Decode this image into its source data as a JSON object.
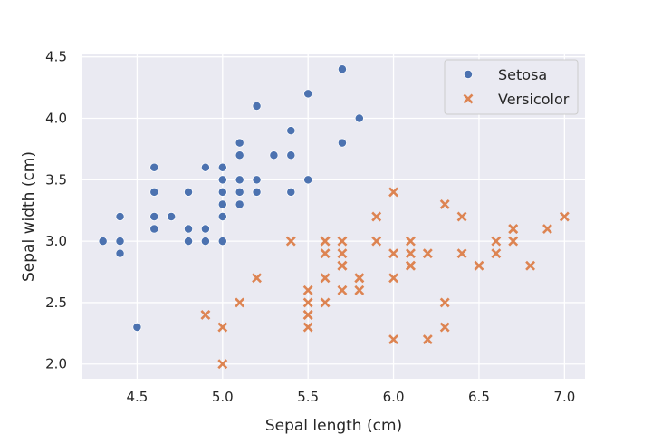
{
  "chart_data": {
    "type": "scatter",
    "title": "",
    "xlabel": "Sepal length (cm)",
    "ylabel": "Sepal width (cm)",
    "xlim": [
      4.18,
      7.12
    ],
    "ylim": [
      1.88,
      4.52
    ],
    "xticks": [
      "4.5",
      "5.0",
      "5.5",
      "6.0",
      "6.5",
      "7.0"
    ],
    "yticks": [
      "2.0",
      "2.5",
      "3.0",
      "3.5",
      "4.0",
      "4.5"
    ],
    "grid": true,
    "legend_position": "top-right",
    "series": [
      {
        "name": "Setosa",
        "marker": "circle",
        "color": "#4c72b0",
        "points": [
          [
            5.1,
            3.5
          ],
          [
            4.9,
            3.0
          ],
          [
            4.7,
            3.2
          ],
          [
            4.6,
            3.1
          ],
          [
            5.0,
            3.6
          ],
          [
            5.4,
            3.9
          ],
          [
            4.6,
            3.4
          ],
          [
            5.0,
            3.4
          ],
          [
            4.4,
            2.9
          ],
          [
            4.9,
            3.1
          ],
          [
            5.4,
            3.7
          ],
          [
            4.8,
            3.4
          ],
          [
            4.8,
            3.0
          ],
          [
            4.3,
            3.0
          ],
          [
            5.8,
            4.0
          ],
          [
            5.7,
            4.4
          ],
          [
            5.4,
            3.9
          ],
          [
            5.1,
            3.5
          ],
          [
            5.7,
            3.8
          ],
          [
            5.1,
            3.8
          ],
          [
            5.4,
            3.4
          ],
          [
            5.1,
            3.7
          ],
          [
            4.6,
            3.6
          ],
          [
            5.1,
            3.3
          ],
          [
            4.8,
            3.4
          ],
          [
            5.0,
            3.0
          ],
          [
            5.0,
            3.4
          ],
          [
            5.2,
            3.5
          ],
          [
            5.2,
            3.4
          ],
          [
            4.7,
            3.2
          ],
          [
            4.8,
            3.1
          ],
          [
            5.4,
            3.4
          ],
          [
            5.2,
            4.1
          ],
          [
            5.5,
            4.2
          ],
          [
            4.9,
            3.1
          ],
          [
            5.0,
            3.2
          ],
          [
            5.5,
            3.5
          ],
          [
            4.9,
            3.6
          ],
          [
            4.4,
            3.0
          ],
          [
            5.1,
            3.4
          ],
          [
            5.0,
            3.5
          ],
          [
            4.5,
            2.3
          ],
          [
            4.4,
            3.2
          ],
          [
            5.0,
            3.5
          ],
          [
            5.1,
            3.8
          ],
          [
            4.8,
            3.0
          ],
          [
            5.1,
            3.8
          ],
          [
            4.6,
            3.2
          ],
          [
            5.3,
            3.7
          ],
          [
            5.0,
            3.3
          ]
        ]
      },
      {
        "name": "Versicolor",
        "marker": "x",
        "color": "#dd8452",
        "points": [
          [
            7.0,
            3.2
          ],
          [
            6.4,
            3.2
          ],
          [
            6.9,
            3.1
          ],
          [
            5.5,
            2.3
          ],
          [
            6.5,
            2.8
          ],
          [
            5.7,
            2.8
          ],
          [
            6.3,
            3.3
          ],
          [
            4.9,
            2.4
          ],
          [
            6.6,
            2.9
          ],
          [
            5.2,
            2.7
          ],
          [
            5.0,
            2.0
          ],
          [
            5.9,
            3.0
          ],
          [
            6.0,
            2.2
          ],
          [
            6.1,
            2.9
          ],
          [
            5.6,
            2.9
          ],
          [
            6.7,
            3.1
          ],
          [
            5.6,
            3.0
          ],
          [
            5.8,
            2.7
          ],
          [
            6.2,
            2.2
          ],
          [
            5.6,
            2.5
          ],
          [
            5.9,
            3.2
          ],
          [
            6.1,
            2.8
          ],
          [
            6.3,
            2.5
          ],
          [
            6.1,
            2.8
          ],
          [
            6.4,
            2.9
          ],
          [
            6.6,
            3.0
          ],
          [
            6.8,
            2.8
          ],
          [
            6.7,
            3.0
          ],
          [
            6.0,
            2.9
          ],
          [
            5.7,
            2.6
          ],
          [
            5.5,
            2.4
          ],
          [
            5.5,
            2.4
          ],
          [
            5.8,
            2.7
          ],
          [
            6.0,
            2.7
          ],
          [
            5.4,
            3.0
          ],
          [
            6.0,
            3.4
          ],
          [
            6.7,
            3.1
          ],
          [
            6.3,
            2.3
          ],
          [
            5.6,
            3.0
          ],
          [
            5.5,
            2.5
          ],
          [
            5.5,
            2.6
          ],
          [
            6.1,
            3.0
          ],
          [
            5.8,
            2.6
          ],
          [
            5.0,
            2.3
          ],
          [
            5.6,
            2.7
          ],
          [
            5.7,
            3.0
          ],
          [
            5.7,
            2.9
          ],
          [
            6.2,
            2.9
          ],
          [
            5.1,
            2.5
          ],
          [
            5.7,
            2.8
          ]
        ]
      }
    ]
  }
}
